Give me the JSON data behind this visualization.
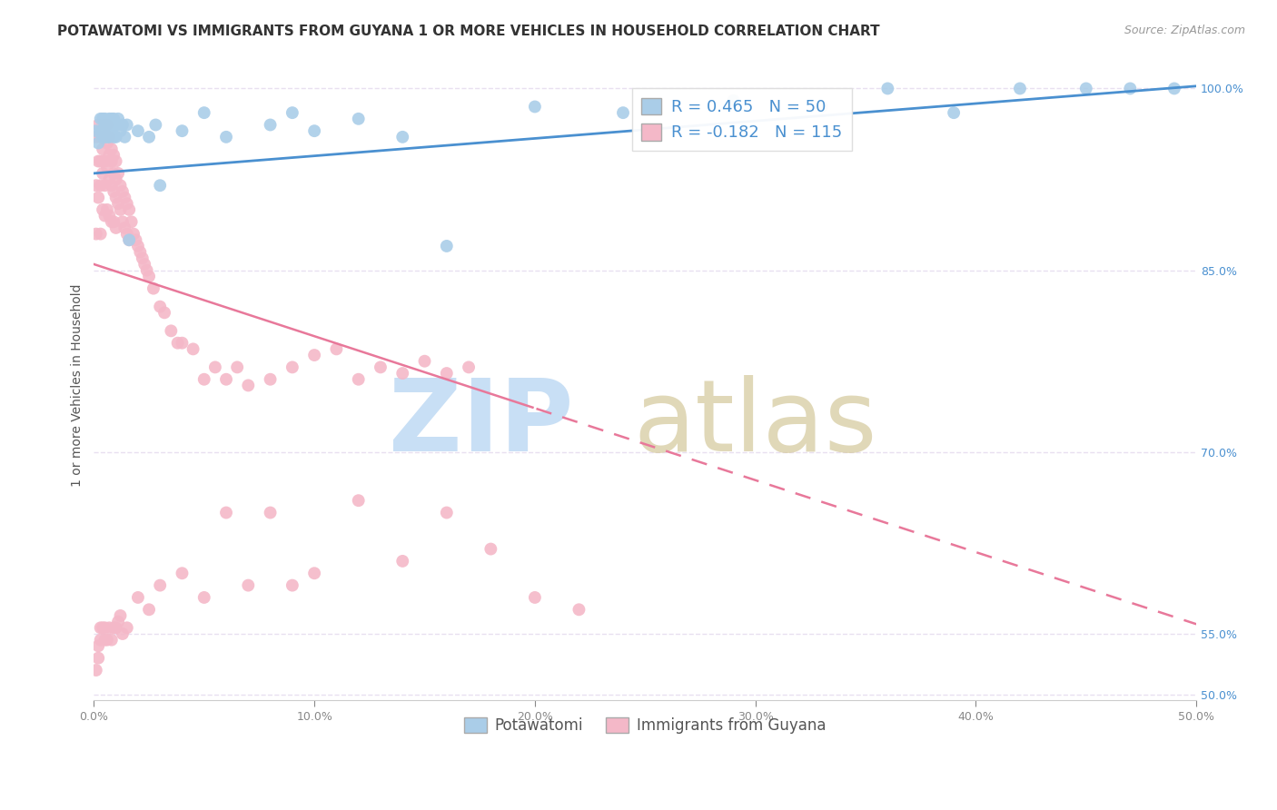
{
  "title": "POTAWATOMI VS IMMIGRANTS FROM GUYANA 1 OR MORE VEHICLES IN HOUSEHOLD CORRELATION CHART",
  "source": "Source: ZipAtlas.com",
  "ylabel": "1 or more Vehicles in Household",
  "xmin": 0.0,
  "xmax": 0.5,
  "ymin": 0.495,
  "ymax": 1.015,
  "x_ticks": [
    0.0,
    0.1,
    0.2,
    0.3,
    0.4,
    0.5
  ],
  "x_tick_labels": [
    "0.0%",
    "10.0%",
    "20.0%",
    "30.0%",
    "40.0%",
    "50.0%"
  ],
  "y_ticks": [
    0.5,
    0.55,
    0.7,
    0.85,
    1.0
  ],
  "y_tick_labels": [
    "50.0%",
    "55.0%",
    "70.0%",
    "85.0%",
    "100.0%"
  ],
  "legend_labels": [
    "Potawatomi",
    "Immigrants from Guyana"
  ],
  "R_potawatomi": 0.465,
  "N_potawatomi": 50,
  "R_guyana": -0.182,
  "N_guyana": 115,
  "blue_color": "#aacde8",
  "pink_color": "#f4b8c8",
  "trend_blue": "#4a90d0",
  "trend_pink": "#e8789a",
  "background_color": "#ffffff",
  "grid_color": "#e8e0f0",
  "title_fontsize": 11,
  "source_fontsize": 9,
  "potawatomi_x": [
    0.001,
    0.002,
    0.003,
    0.003,
    0.004,
    0.004,
    0.005,
    0.005,
    0.005,
    0.006,
    0.006,
    0.007,
    0.007,
    0.007,
    0.008,
    0.008,
    0.009,
    0.009,
    0.009,
    0.01,
    0.01,
    0.011,
    0.012,
    0.013,
    0.014,
    0.015,
    0.016,
    0.02,
    0.025,
    0.028,
    0.03,
    0.04,
    0.05,
    0.06,
    0.08,
    0.09,
    0.1,
    0.12,
    0.14,
    0.16,
    0.2,
    0.24,
    0.29,
    0.33,
    0.36,
    0.39,
    0.42,
    0.45,
    0.47,
    0.49
  ],
  "potawatomi_y": [
    0.965,
    0.955,
    0.965,
    0.975,
    0.96,
    0.975,
    0.96,
    0.97,
    0.975,
    0.96,
    0.97,
    0.96,
    0.97,
    0.975,
    0.965,
    0.975,
    0.96,
    0.97,
    0.975,
    0.96,
    0.97,
    0.975,
    0.965,
    0.97,
    0.96,
    0.97,
    0.875,
    0.965,
    0.96,
    0.97,
    0.92,
    0.965,
    0.98,
    0.96,
    0.97,
    0.98,
    0.965,
    0.975,
    0.96,
    0.87,
    0.985,
    0.98,
    0.99,
    0.985,
    1.0,
    0.98,
    1.0,
    1.0,
    1.0,
    1.0
  ],
  "guyana_x": [
    0.001,
    0.001,
    0.001,
    0.002,
    0.002,
    0.002,
    0.003,
    0.003,
    0.003,
    0.003,
    0.004,
    0.004,
    0.004,
    0.004,
    0.005,
    0.005,
    0.005,
    0.005,
    0.005,
    0.006,
    0.006,
    0.006,
    0.006,
    0.007,
    0.007,
    0.007,
    0.007,
    0.008,
    0.008,
    0.008,
    0.008,
    0.009,
    0.009,
    0.009,
    0.009,
    0.01,
    0.01,
    0.01,
    0.01,
    0.011,
    0.011,
    0.012,
    0.012,
    0.013,
    0.013,
    0.014,
    0.014,
    0.015,
    0.015,
    0.016,
    0.016,
    0.017,
    0.018,
    0.019,
    0.02,
    0.021,
    0.022,
    0.023,
    0.024,
    0.025,
    0.027,
    0.03,
    0.032,
    0.035,
    0.038,
    0.04,
    0.045,
    0.05,
    0.055,
    0.06,
    0.065,
    0.07,
    0.08,
    0.09,
    0.1,
    0.11,
    0.12,
    0.13,
    0.14,
    0.15,
    0.16,
    0.17,
    0.001,
    0.002,
    0.002,
    0.003,
    0.003,
    0.004,
    0.005,
    0.005,
    0.006,
    0.007,
    0.008,
    0.009,
    0.01,
    0.011,
    0.012,
    0.013,
    0.015,
    0.02,
    0.025,
    0.03,
    0.04,
    0.05,
    0.06,
    0.07,
    0.08,
    0.09,
    0.1,
    0.12,
    0.14,
    0.16,
    0.18,
    0.2,
    0.22
  ],
  "guyana_y": [
    0.96,
    0.92,
    0.88,
    0.97,
    0.94,
    0.91,
    0.96,
    0.94,
    0.92,
    0.88,
    0.96,
    0.95,
    0.93,
    0.9,
    0.97,
    0.96,
    0.94,
    0.92,
    0.895,
    0.97,
    0.955,
    0.935,
    0.9,
    0.96,
    0.945,
    0.925,
    0.895,
    0.95,
    0.94,
    0.92,
    0.89,
    0.945,
    0.93,
    0.915,
    0.89,
    0.94,
    0.925,
    0.91,
    0.885,
    0.93,
    0.905,
    0.92,
    0.9,
    0.915,
    0.89,
    0.91,
    0.885,
    0.905,
    0.88,
    0.9,
    0.875,
    0.89,
    0.88,
    0.875,
    0.87,
    0.865,
    0.86,
    0.855,
    0.85,
    0.845,
    0.835,
    0.82,
    0.815,
    0.8,
    0.79,
    0.79,
    0.785,
    0.76,
    0.77,
    0.76,
    0.77,
    0.755,
    0.76,
    0.77,
    0.78,
    0.785,
    0.76,
    0.77,
    0.765,
    0.775,
    0.765,
    0.77,
    0.52,
    0.54,
    0.53,
    0.555,
    0.545,
    0.555,
    0.545,
    0.555,
    0.545,
    0.555,
    0.545,
    0.555,
    0.555,
    0.56,
    0.565,
    0.55,
    0.555,
    0.58,
    0.57,
    0.59,
    0.6,
    0.58,
    0.65,
    0.59,
    0.65,
    0.59,
    0.6,
    0.66,
    0.61,
    0.65,
    0.62,
    0.58,
    0.57
  ],
  "trend_blue_x0": 0.0,
  "trend_blue_y0": 0.93,
  "trend_blue_x1": 0.5,
  "trend_blue_y1": 1.002,
  "trend_pink_x0": 0.0,
  "trend_pink_y0": 0.855,
  "trend_pink_x1": 0.5,
  "trend_pink_y1": 0.558,
  "trend_dashed_start": 0.2
}
